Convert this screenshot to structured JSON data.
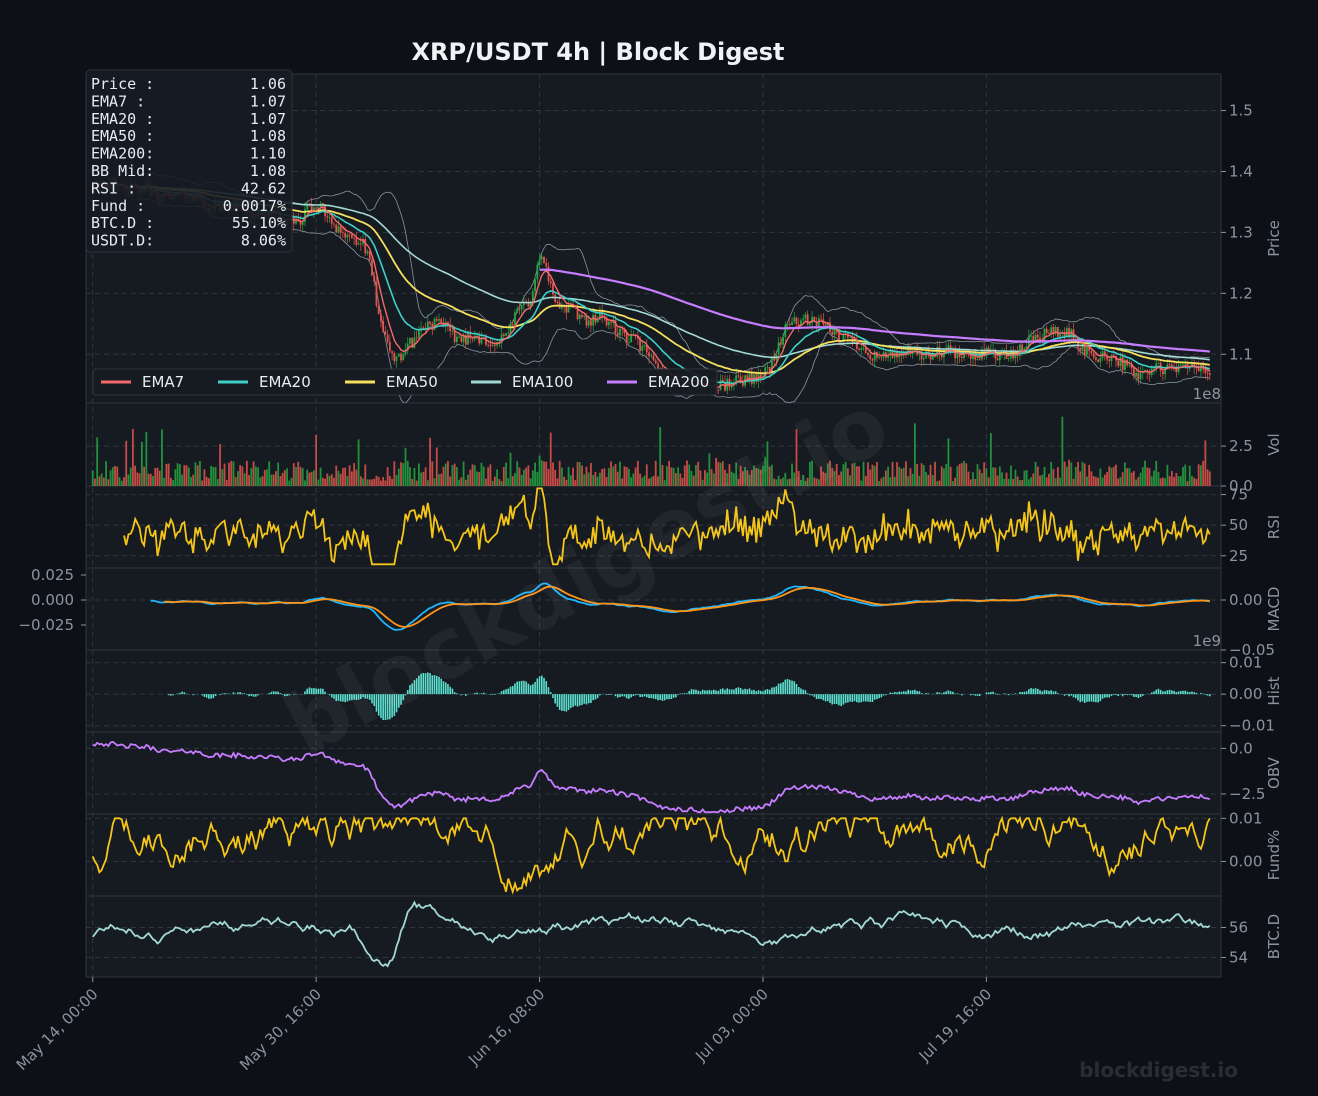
{
  "chart_data": {
    "type": "line",
    "title": "XRP/USDT  4h  |  Block Digest",
    "watermark": "blockdigest.io",
    "footer": "blockdigest.io",
    "colors": {
      "background": "#0d1117",
      "panel": "#161b22",
      "grid": "#30363d",
      "up": "#26a641",
      "down": "#e5534b",
      "ema7": "#f46a6a",
      "ema20": "#3ecfc8",
      "ema50": "#f6e05e",
      "ema100": "#a3d9d4",
      "ema200": "#c77dff",
      "rsi": "#f5c518",
      "macd": "#1fb6ff",
      "signal": "#ff9416",
      "hist": "#5ce1d1",
      "obv": "#c77dff",
      "funding": "#f5c518",
      "btcd": "#a3d9d4"
    },
    "x_axis": {
      "ticks": [
        "May 14, 00:00",
        "May 30, 16:00",
        "Jun 16, 08:00",
        "Jul 03, 00:00",
        "Jul 19, 16:00"
      ],
      "tick_positions": [
        0,
        100,
        200,
        300,
        400
      ],
      "x_max": 500,
      "grid": true
    },
    "info_box": [
      {
        "label": "Price :",
        "value": "1.06"
      },
      {
        "label": "EMA7  :",
        "value": "1.07"
      },
      {
        "label": "EMA20 :",
        "value": "1.07"
      },
      {
        "label": "EMA50 :",
        "value": "1.08"
      },
      {
        "label": "EMA200:",
        "value": "1.10"
      },
      {
        "label": "BB Mid:",
        "value": "1.08"
      },
      {
        "label": "RSI   :",
        "value": "42.62"
      },
      {
        "label": "Fund  :",
        "value": "0.0017%"
      },
      {
        "label": "BTC.D :",
        "value": "55.10%"
      },
      {
        "label": "USDT.D:",
        "value": "8.06%"
      }
    ],
    "legend": [
      "EMA7",
      "EMA20",
      "EMA50",
      "EMA100",
      "EMA200"
    ],
    "legend_placement": "lower-left",
    "panels": [
      {
        "id": "price",
        "ylabel": "Price",
        "ylim": [
          1.02,
          1.56
        ],
        "ticks": [
          1.1,
          1.2,
          1.3,
          1.4,
          1.5
        ],
        "tick_labels": [
          "1.1",
          "1.2",
          "1.3",
          "1.4",
          "1.5"
        ],
        "anchors": {
          "x": [
            0,
            40,
            60,
            90,
            100,
            120,
            135,
            150,
            165,
            180,
            195,
            200,
            210,
            225,
            240,
            255,
            270,
            285,
            300,
            315,
            330,
            350,
            370,
            390,
            410,
            430,
            450,
            470,
            490,
            500
          ],
          "y": [
            1.38,
            1.36,
            1.34,
            1.32,
            1.34,
            1.28,
            1.09,
            1.15,
            1.13,
            1.12,
            1.18,
            1.26,
            1.17,
            1.16,
            1.13,
            1.07,
            1.05,
            1.05,
            1.07,
            1.16,
            1.14,
            1.1,
            1.1,
            1.1,
            1.1,
            1.14,
            1.1,
            1.07,
            1.08,
            1.07
          ]
        }
      },
      {
        "id": "vol",
        "ylabel": "Vol",
        "ylim": [
          0,
          5.2
        ],
        "ticks": [
          0,
          2.5
        ],
        "tick_labels": [
          "0.0",
          "2.5"
        ],
        "offset_label": "1e8"
      },
      {
        "id": "rsi",
        "ylabel": "RSI",
        "ylim": [
          15,
          82
        ],
        "ticks": [
          25,
          50,
          75
        ],
        "tick_labels": [
          "25",
          "50",
          "75"
        ]
      },
      {
        "id": "macd",
        "ylabel": "MACD",
        "ylim": [
          -0.05,
          0.032
        ],
        "ticks": [
          -0.05,
          0.0
        ],
        "tick_labels": [
          "−0.05",
          "0.00"
        ],
        "left_ticks": [
          -0.025,
          0.0,
          0.025
        ],
        "left_tick_labels": [
          "−0.025",
          "0.000",
          "0.025"
        ]
      },
      {
        "id": "hist",
        "ylabel": "Hist",
        "ylim": [
          -0.012,
          0.014
        ],
        "ticks": [
          -0.01,
          0.0,
          0.01
        ],
        "tick_labels": [
          "−0.01",
          "0.00",
          "0.01"
        ],
        "offset_label": "1e9"
      },
      {
        "id": "obv",
        "ylabel": "OBV",
        "ylim": [
          -3.6,
          0.9
        ],
        "ticks": [
          -2.5,
          0.0
        ],
        "tick_labels": [
          "−2.5",
          "0.0"
        ]
      },
      {
        "id": "fund",
        "ylabel": "Fund%",
        "ylim": [
          -0.008,
          0.011
        ],
        "ticks": [
          0.0,
          0.01
        ],
        "tick_labels": [
          "0.00",
          "0.01"
        ]
      },
      {
        "id": "btcd",
        "ylabel": "BTC.D",
        "ylim": [
          52.7,
          58.1
        ],
        "ticks": [
          54,
          56
        ],
        "tick_labels": [
          "54",
          "56"
        ]
      }
    ]
  }
}
